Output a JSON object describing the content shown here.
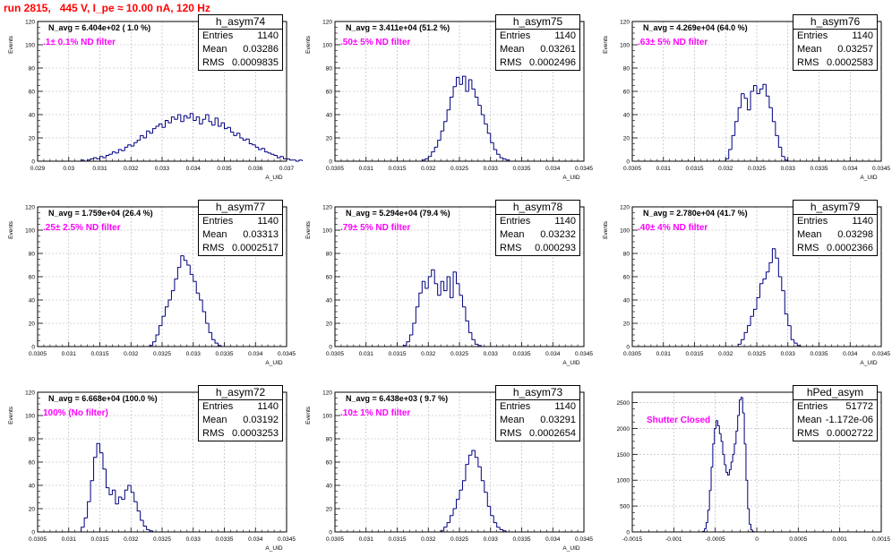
{
  "page": {
    "title": "run 2815,   445 V, I_pe ≈ 10.00 nA, 120 Hz"
  },
  "colors": {
    "title": "#ff0000",
    "hist": "#000080",
    "grid": "#b0b0b0",
    "filter_text": "#ff00ff"
  },
  "chart_data": [
    {
      "type": "bar",
      "name": "h_asym74",
      "stats": {
        "entries": "1140",
        "mean": "0.03286",
        "rms": "0.0009835"
      },
      "navg": "N_avg = 6.404e+02 ( 1.0 %)",
      "filter": ".1± 0.1% ND filter",
      "ylabel": "Events",
      "xlabel": "A_UID",
      "xlim": [
        0.029,
        0.037
      ],
      "ylim": [
        0,
        120
      ],
      "xticks": [
        "0.029",
        "0.03",
        "0.031",
        "0.032",
        "0.033",
        "0.034",
        "0.035",
        "0.036",
        "0.037"
      ],
      "yticks": [
        "0",
        "20",
        "40",
        "60",
        "80",
        "100",
        "120"
      ],
      "bin_start": 0.0304,
      "bin_width": 0.0001,
      "values": [
        1,
        0,
        1,
        2,
        3,
        2,
        4,
        3,
        5,
        6,
        8,
        7,
        10,
        9,
        12,
        14,
        13,
        16,
        18,
        22,
        20,
        26,
        24,
        28,
        30,
        32,
        29,
        35,
        33,
        38,
        36,
        40,
        34,
        39,
        37,
        41,
        35,
        38,
        32,
        36,
        40,
        34,
        31,
        37,
        30,
        33,
        28,
        29,
        25,
        22,
        24,
        20,
        18,
        19,
        15,
        14,
        12,
        10,
        11,
        8,
        7,
        6,
        5,
        3,
        4,
        2,
        2,
        1,
        1,
        0,
        1
      ]
    },
    {
      "type": "bar",
      "name": "h_asym75",
      "stats": {
        "entries": "1140",
        "mean": "0.03261",
        "rms": "0.0002496"
      },
      "navg": "N_avg = 3.411e+04 (51.2 %)",
      "filter": ".50± 5% ND filter",
      "ylabel": "Events",
      "xlabel": "A_UID",
      "xlim": [
        0.0305,
        0.0345
      ],
      "ylim": [
        0,
        120
      ],
      "xticks": [
        "0.0305",
        "0.031",
        "0.0315",
        "0.032",
        "0.0325",
        "0.033",
        "0.0335",
        "0.034",
        "0.0345"
      ],
      "yticks": [
        "0",
        "20",
        "40",
        "60",
        "80",
        "100",
        "120"
      ],
      "bin_start": 0.0319,
      "bin_width": 5e-05,
      "values": [
        1,
        2,
        4,
        8,
        12,
        18,
        26,
        34,
        44,
        55,
        64,
        72,
        66,
        73,
        60,
        70,
        62,
        55,
        48,
        40,
        32,
        24,
        16,
        10,
        6,
        3,
        2,
        1
      ]
    },
    {
      "type": "bar",
      "name": "h_asym76",
      "stats": {
        "entries": "1140",
        "mean": "0.03257",
        "rms": "0.0002583"
      },
      "navg": "N_avg = 4.269e+04 (64.0 %)",
      "filter": ".63± 5% ND filter",
      "ylabel": "Events",
      "xlabel": "A_UID",
      "xlim": [
        0.0305,
        0.0345
      ],
      "ylim": [
        0,
        120
      ],
      "xticks": [
        "0.0305",
        "0.031",
        "0.0315",
        "0.032",
        "0.0325",
        "0.033",
        "0.0335",
        "0.034",
        "0.0345"
      ],
      "yticks": [
        "0",
        "20",
        "40",
        "60",
        "80",
        "100",
        "120"
      ],
      "bin_start": 0.032,
      "bin_width": 5e-05,
      "values": [
        2,
        10,
        22,
        34,
        46,
        58,
        54,
        44,
        60,
        65,
        58,
        62,
        66,
        56,
        46,
        34,
        22,
        12,
        4,
        1
      ]
    },
    {
      "type": "bar",
      "name": "h_asym77",
      "stats": {
        "entries": "1140",
        "mean": "0.03313",
        "rms": "0.0002517"
      },
      "navg": "N_avg = 1.759e+04 (26.4 %)",
      "filter": ".25± 2.5% ND filter",
      "ylabel": "Events",
      "xlabel": "A_UID",
      "xlim": [
        0.0305,
        0.0345
      ],
      "ylim": [
        0,
        120
      ],
      "xticks": [
        "0.0305",
        "0.031",
        "0.0315",
        "0.032",
        "0.0325",
        "0.033",
        "0.0335",
        "0.034",
        "0.0345"
      ],
      "yticks": [
        "0",
        "20",
        "40",
        "60",
        "80",
        "100",
        "120"
      ],
      "bin_start": 0.0323,
      "bin_width": 5e-05,
      "values": [
        1,
        4,
        10,
        18,
        26,
        34,
        40,
        48,
        58,
        68,
        78,
        74,
        70,
        62,
        56,
        46,
        40,
        30,
        20,
        12,
        6,
        3,
        1
      ]
    },
    {
      "type": "bar",
      "name": "h_asym78",
      "stats": {
        "entries": "1140",
        "mean": "0.03232",
        "rms": "0.000293"
      },
      "navg": "N_avg = 5.294e+04 (79.4 %)",
      "filter": ".79± 5% ND filter",
      "ylabel": "Events",
      "xlabel": "A_UID",
      "xlim": [
        0.0305,
        0.0345
      ],
      "ylim": [
        0,
        120
      ],
      "xticks": [
        "0.0305",
        "0.031",
        "0.0315",
        "0.032",
        "0.0325",
        "0.033",
        "0.0335",
        "0.034",
        "0.0345"
      ],
      "yticks": [
        "0",
        "20",
        "40",
        "60",
        "80",
        "100",
        "120"
      ],
      "bin_start": 0.0316,
      "bin_width": 5e-05,
      "values": [
        1,
        4,
        10,
        20,
        34,
        46,
        56,
        50,
        60,
        66,
        54,
        44,
        56,
        48,
        60,
        42,
        64,
        54,
        44,
        34,
        22,
        12,
        6,
        2,
        1
      ]
    },
    {
      "type": "bar",
      "name": "h_asym79",
      "stats": {
        "entries": "1140",
        "mean": "0.03298",
        "rms": "0.0002366"
      },
      "navg": "N_avg = 2.780e+04 (41.7 %)",
      "filter": ".40± 4% ND filter",
      "ylabel": "Events",
      "xlabel": "A_UID",
      "xlim": [
        0.0305,
        0.0345
      ],
      "ylim": [
        0,
        120
      ],
      "xticks": [
        "0.0305",
        "0.031",
        "0.0315",
        "0.032",
        "0.0325",
        "0.033",
        "0.0335",
        "0.034",
        "0.0345"
      ],
      "yticks": [
        "0",
        "20",
        "40",
        "60",
        "80",
        "100",
        "120"
      ],
      "bin_start": 0.0322,
      "bin_width": 5e-05,
      "values": [
        2,
        6,
        12,
        18,
        26,
        32,
        42,
        54,
        58,
        64,
        72,
        84,
        76,
        60,
        48,
        28,
        18,
        6,
        3,
        1
      ]
    },
    {
      "type": "bar",
      "name": "h_asym72",
      "stats": {
        "entries": "1140",
        "mean": "0.03192",
        "rms": "0.0003253"
      },
      "navg": "N_avg = 6.668e+04 (100.0 %)",
      "filter": "100% (No filter)",
      "ylabel": "Events",
      "xlabel": "A_UID",
      "xlim": [
        0.0305,
        0.0345
      ],
      "ylim": [
        0,
        120
      ],
      "xticks": [
        "0.0305",
        "0.031",
        "0.0315",
        "0.032",
        "0.0325",
        "0.033",
        "0.0335",
        "0.034",
        "0.0345"
      ],
      "yticks": [
        "0",
        "20",
        "40",
        "60",
        "80",
        "100",
        "120"
      ],
      "bin_start": 0.0312,
      "bin_width": 5e-05,
      "values": [
        4,
        12,
        26,
        44,
        64,
        76,
        68,
        54,
        38,
        32,
        36,
        24,
        30,
        28,
        36,
        40,
        34,
        26,
        18,
        10,
        5,
        2,
        1
      ]
    },
    {
      "type": "bar",
      "name": "h_asym73",
      "stats": {
        "entries": "1140",
        "mean": "0.03291",
        "rms": "0.0002654"
      },
      "navg": "N_avg = 6.438e+03 ( 9.7 %)",
      "filter": ".10± 1% ND filter",
      "ylabel": "Events",
      "xlabel": "A_UID",
      "xlim": [
        0.0305,
        0.0345
      ],
      "ylim": [
        0,
        120
      ],
      "xticks": [
        "0.0305",
        "0.031",
        "0.0315",
        "0.032",
        "0.0325",
        "0.033",
        "0.0335",
        "0.034",
        "0.0345"
      ],
      "yticks": [
        "0",
        "20",
        "40",
        "60",
        "80",
        "100",
        "120"
      ],
      "bin_start": 0.0322,
      "bin_width": 5e-05,
      "values": [
        1,
        4,
        8,
        14,
        20,
        28,
        36,
        44,
        58,
        66,
        70,
        64,
        56,
        44,
        34,
        22,
        14,
        8,
        4,
        2,
        1
      ]
    },
    {
      "type": "bar",
      "name": "hPed_asym",
      "stats": {
        "entries": "51772",
        "mean": "-1.172e-06",
        "rms": "0.0002722"
      },
      "navg": "",
      "filter": "Shutter Closed",
      "ylabel": "",
      "xlabel": "",
      "xlim": [
        -0.0015,
        0.0015
      ],
      "ylim": [
        0,
        2700
      ],
      "xticks": [
        "-0.0015",
        "-0.001",
        "-0.0005",
        "0",
        "0.0005",
        "0.001",
        "0.0015"
      ],
      "yticks": [
        "0",
        "500",
        "1000",
        "1500",
        "2000",
        "2500"
      ],
      "bin_start": -0.00065,
      "bin_width": 2e-05,
      "values": [
        10,
        60,
        180,
        420,
        800,
        1250,
        1700,
        2000,
        2150,
        2050,
        1900,
        1750,
        1500,
        1300,
        1150,
        1100,
        1200,
        1350,
        1500,
        1700,
        1950,
        2250,
        2550,
        2600,
        2300,
        1700,
        1000,
        450,
        150,
        40,
        8
      ]
    }
  ]
}
